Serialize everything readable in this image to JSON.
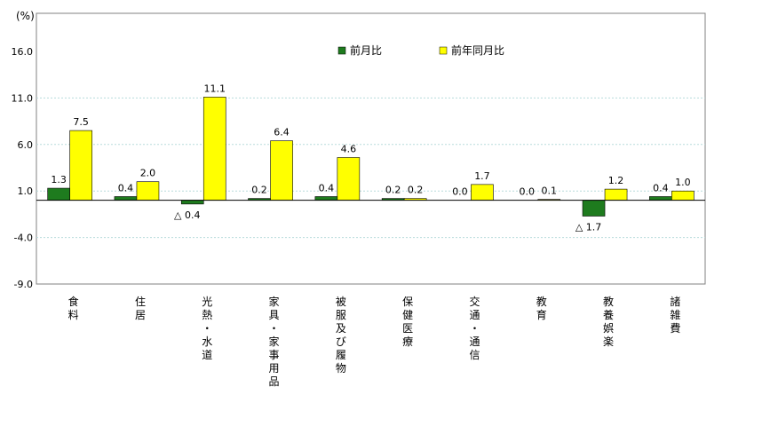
{
  "chart_data": {
    "type": "bar",
    "unit_label": "(%)",
    "ylim": [
      -9.0,
      16.0
    ],
    "yticks": [
      "16.0",
      "11.0",
      "6.0",
      "1.0",
      "-4.0",
      "-9.0"
    ],
    "ytick_values": [
      16.0,
      11.0,
      6.0,
      1.0,
      -4.0,
      -9.0
    ],
    "grid": true,
    "legend_position": "top-right",
    "categories": [
      "食料",
      "住居",
      "光熱・水道",
      "家具・家事用品",
      "被服及び履物",
      "保健医療",
      "交通・通信",
      "教育",
      "教養娯楽",
      "諸雑費"
    ],
    "series": [
      {
        "name": "前月比",
        "color": "#1e7b1e",
        "values": [
          1.3,
          0.4,
          -0.4,
          0.2,
          0.4,
          0.2,
          0.0,
          0.0,
          -1.7,
          0.4
        ],
        "labels": [
          "1.3",
          "0.4",
          "△ 0.4",
          "0.2",
          "0.4",
          "0.2",
          "0.0",
          "0.0",
          "△ 1.7",
          "0.4"
        ]
      },
      {
        "name": "前年同月比",
        "color": "#ffff00",
        "values": [
          7.5,
          2.0,
          11.1,
          6.4,
          4.6,
          0.2,
          1.7,
          0.1,
          1.2,
          1.0
        ],
        "labels": [
          "7.5",
          "2.0",
          "11.1",
          "6.4",
          "4.6",
          "0.2",
          "1.7",
          "0.1",
          "1.2",
          "1.0"
        ]
      }
    ]
  }
}
